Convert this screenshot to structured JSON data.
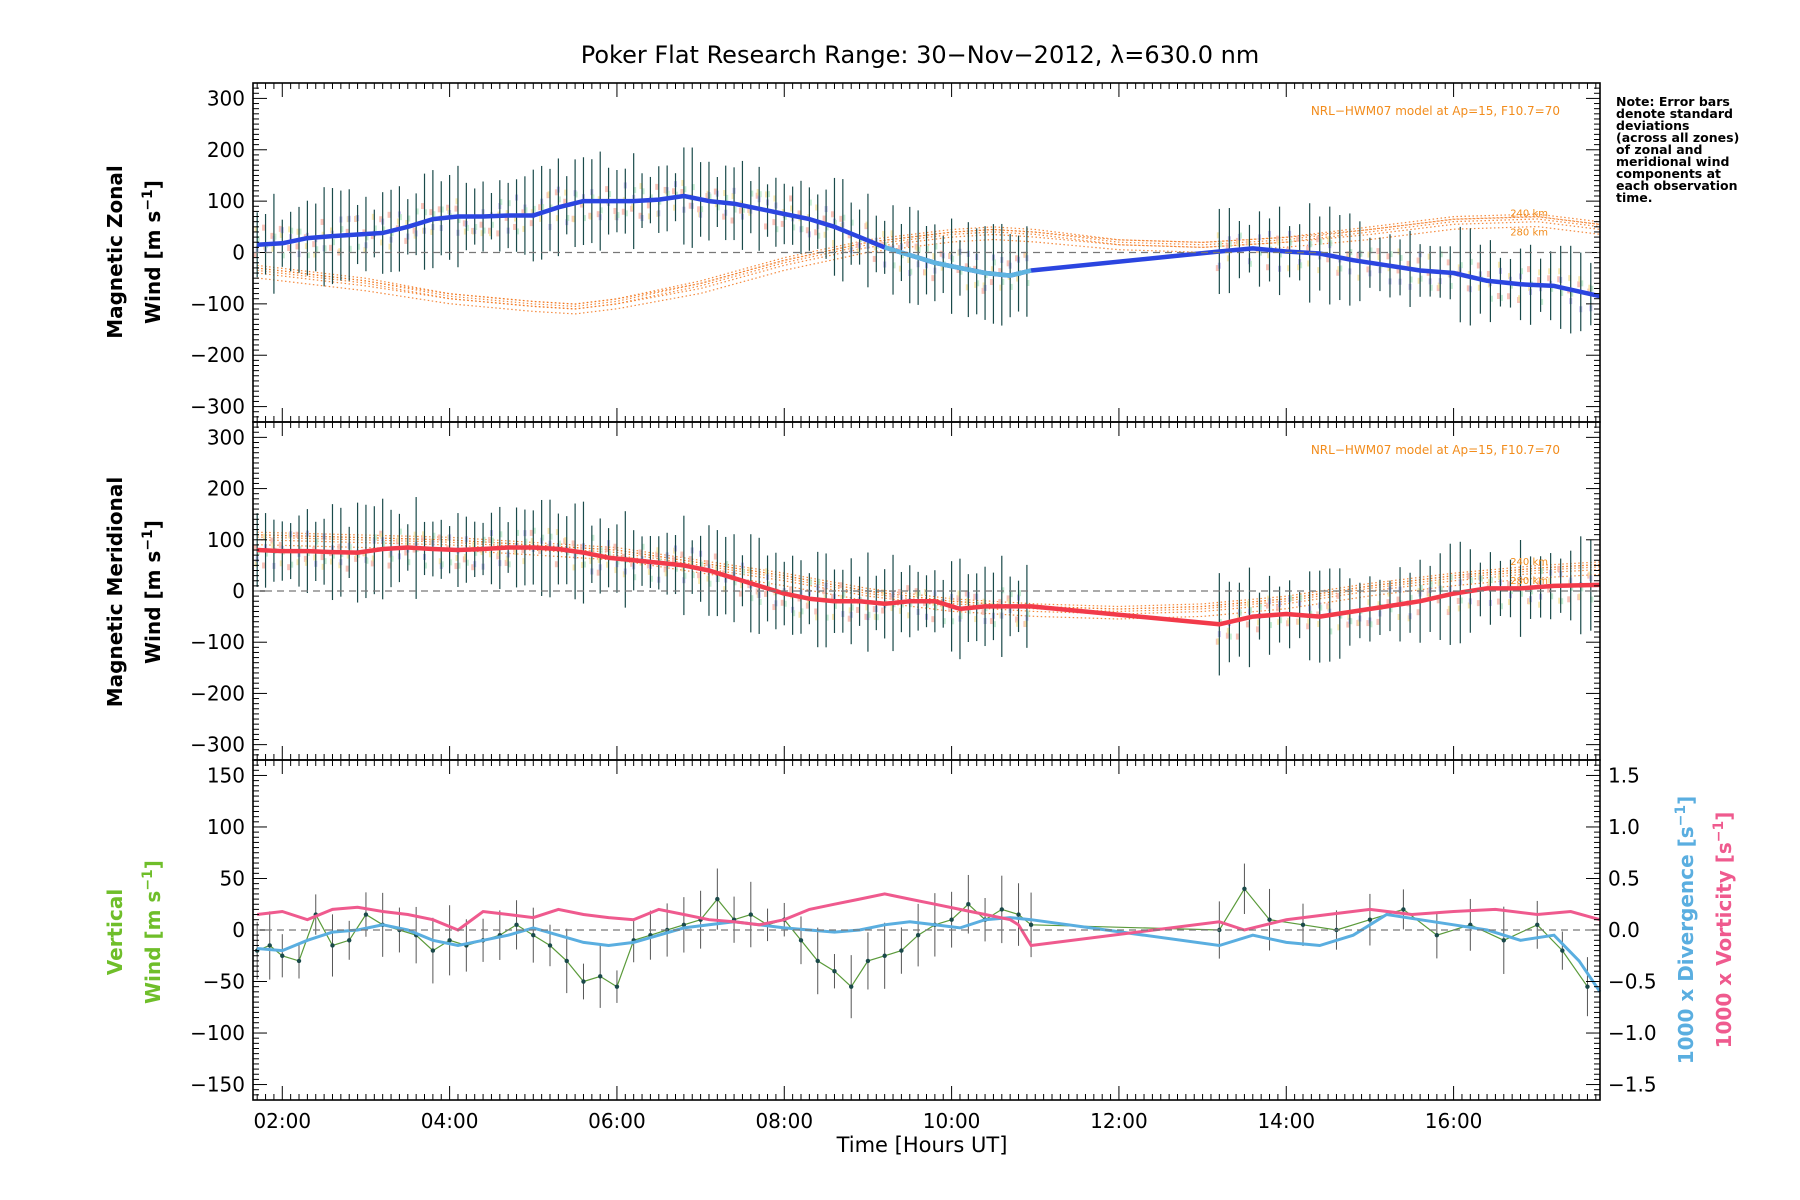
{
  "title": "Poker Flat Research Range: 30−Nov−2012, λ=630.0 nm",
  "note_lines": [
    "Note: Error bars",
    "denote standard",
    "deviations",
    "(across all zones)",
    "of zonal and",
    "meridional wind",
    "components at",
    "each observation",
    "time."
  ],
  "x_axis": {
    "label": "Time [Hours UT]",
    "range_hours": [
      1.65,
      17.75
    ],
    "ticks": [
      {
        "v": 2,
        "label": "02:00"
      },
      {
        "v": 4,
        "label": "04:00"
      },
      {
        "v": 6,
        "label": "06:00"
      },
      {
        "v": 8,
        "label": "08:00"
      },
      {
        "v": 10,
        "label": "10:00"
      },
      {
        "v": 12,
        "label": "12:00"
      },
      {
        "v": 14,
        "label": "14:00"
      },
      {
        "v": 16,
        "label": "16:00"
      }
    ]
  },
  "panels": {
    "zonal": {
      "ylabel_line1": "Magnetic Zonal",
      "ylabel_line2": "Wind [m s",
      "ylabel_sup": "−1",
      "ylabel_close": "]",
      "model_label": "NRL−HWM07 model at Ap=15, F10.7=70",
      "alt_labels": [
        "240 km",
        "280 km"
      ],
      "ylim": [
        -330,
        330
      ],
      "ticks": [
        {
          "v": 300,
          "label": "300"
        },
        {
          "v": 200,
          "label": "200"
        },
        {
          "v": 100,
          "label": "100"
        },
        {
          "v": 0,
          "label": "0"
        },
        {
          "v": -100,
          "label": "−100"
        },
        {
          "v": -200,
          "label": "−200"
        },
        {
          "v": -300,
          "label": "−300"
        }
      ]
    },
    "meridional": {
      "ylabel_line1": "Magnetic Meridional",
      "ylabel_line2": "Wind [m s",
      "ylabel_sup": "−1",
      "ylabel_close": "]",
      "model_label": "NRL−HWM07 model at Ap=15, F10.7=70",
      "alt_labels": [
        "240 km",
        "280 km"
      ],
      "ylim": [
        -330,
        330
      ],
      "ticks": [
        {
          "v": 300,
          "label": "300"
        },
        {
          "v": 200,
          "label": "200"
        },
        {
          "v": 100,
          "label": "100"
        },
        {
          "v": 0,
          "label": "0"
        },
        {
          "v": -100,
          "label": "−100"
        },
        {
          "v": -200,
          "label": "−200"
        },
        {
          "v": -300,
          "label": "−300"
        }
      ]
    },
    "vertical": {
      "ylabel_line1": "Vertical",
      "ylabel_line2": "Wind [m s",
      "ylabel_sup": "−1",
      "ylabel_close": "]",
      "ylim": [
        -165,
        165
      ],
      "ticks": [
        {
          "v": 150,
          "label": "150"
        },
        {
          "v": 100,
          "label": "100"
        },
        {
          "v": 50,
          "label": "50"
        },
        {
          "v": 0,
          "label": "0"
        },
        {
          "v": -50,
          "label": "−50"
        },
        {
          "v": -100,
          "label": "−100"
        },
        {
          "v": -150,
          "label": "−150"
        }
      ],
      "right_ylim": [
        -1.65,
        1.65
      ],
      "right_ticks": [
        {
          "v": 1.5,
          "label": "1.5"
        },
        {
          "v": 1.0,
          "label": "1.0"
        },
        {
          "v": 0.5,
          "label": "0.5"
        },
        {
          "v": 0.0,
          "label": "0.0"
        },
        {
          "v": -0.5,
          "label": "−0.5"
        },
        {
          "v": -1.0,
          "label": "−1.0"
        },
        {
          "v": -1.5,
          "label": "−1.5"
        }
      ],
      "right_label_div": "1000 x Divergence [s",
      "right_label_vor": "1000 x Vorticity [s",
      "right_label_sup": "−1",
      "right_label_close": "]"
    }
  },
  "colors": {
    "zonal_line": "#2b45e0",
    "zonal_light": "#5fb4e0",
    "meridional_line": "#f23a4a",
    "vertical_text": "#6fbe2a",
    "vertical_line": "#5a9a3a",
    "divergence": "#5aaee0",
    "vorticity": "#ef5a8e",
    "model": "#f2761c",
    "errorbar": "#1a4a4a"
  },
  "chart_data": [
    {
      "type": "line",
      "panel": "zonal",
      "series": [
        {
          "x": [
            1.7,
            2.0,
            2.3,
            2.6,
            2.9,
            3.2,
            3.5,
            3.8,
            4.1,
            4.4,
            4.7,
            5.0,
            5.3,
            5.6,
            5.9,
            6.2,
            6.5,
            6.8,
            7.1,
            7.4,
            7.7,
            8.0,
            8.3,
            8.6,
            8.9,
            9.2,
            9.5,
            9.8,
            10.1,
            10.4,
            10.7,
            10.95,
            13.2,
            13.6,
            14.0,
            14.4,
            14.8,
            15.2,
            15.6,
            16.0,
            16.4,
            16.8,
            17.2,
            17.75
          ],
          "values": [
            15,
            18,
            28,
            32,
            35,
            38,
            50,
            65,
            70,
            70,
            72,
            72,
            88,
            100,
            100,
            100,
            103,
            110,
            100,
            95,
            85,
            75,
            65,
            50,
            30,
            10,
            -5,
            -20,
            -30,
            -40,
            -45,
            -35,
            2,
            8,
            2,
            -2,
            -15,
            -25,
            -35,
            -40,
            -55,
            -62,
            -65,
            -85
          ]
        }
      ],
      "model_curves_240km": {
        "x": [
          1.7,
          3,
          4,
          5,
          5.5,
          6,
          7,
          8,
          9,
          10,
          10.5,
          11,
          12,
          13,
          14,
          15,
          16,
          17,
          17.75
        ],
        "values": [
          -30,
          -55,
          -85,
          -100,
          -105,
          -95,
          -60,
          -15,
          20,
          40,
          45,
          40,
          20,
          15,
          25,
          45,
          65,
          70,
          55
        ]
      },
      "model_curves_280km": {
        "x": [
          1.7,
          3,
          4,
          5,
          5.5,
          6,
          7,
          8,
          9,
          10,
          10.5,
          11,
          12,
          13,
          14,
          15,
          16,
          17,
          17.75
        ],
        "values": [
          -40,
          -65,
          -90,
          -105,
          -110,
          -100,
          -70,
          -25,
          10,
          30,
          35,
          30,
          15,
          10,
          20,
          35,
          55,
          60,
          45
        ]
      }
    },
    {
      "type": "line",
      "panel": "meridional",
      "series": [
        {
          "x": [
            1.7,
            2.0,
            2.3,
            2.6,
            2.9,
            3.2,
            3.5,
            3.8,
            4.1,
            4.4,
            4.7,
            5.0,
            5.3,
            5.6,
            5.9,
            6.2,
            6.5,
            6.8,
            7.1,
            7.4,
            7.7,
            8.0,
            8.3,
            8.6,
            8.9,
            9.2,
            9.5,
            9.8,
            10.1,
            10.4,
            10.7,
            10.95,
            13.2,
            13.6,
            14.0,
            14.4,
            14.8,
            15.2,
            15.6,
            16.0,
            16.4,
            16.8,
            17.2,
            17.75
          ],
          "values": [
            80,
            78,
            78,
            76,
            75,
            82,
            85,
            82,
            80,
            82,
            85,
            85,
            82,
            75,
            65,
            60,
            55,
            50,
            40,
            25,
            10,
            -5,
            -15,
            -20,
            -20,
            -25,
            -20,
            -20,
            -35,
            -30,
            -30,
            -30,
            -65,
            -50,
            -45,
            -50,
            -40,
            -30,
            -20,
            -5,
            5,
            5,
            10,
            12
          ]
        }
      ],
      "model_curves_240km": {
        "x": [
          1.7,
          4,
          6,
          8,
          9,
          10,
          11,
          12,
          13,
          14,
          15,
          16,
          17,
          17.75
        ],
        "values": [
          110,
          100,
          80,
          30,
          0,
          -20,
          -30,
          -35,
          -30,
          -15,
          10,
          30,
          45,
          52
        ]
      },
      "model_curves_280km": {
        "x": [
          1.7,
          4,
          6,
          8,
          9,
          10,
          11,
          12,
          13,
          14,
          15,
          16,
          17,
          17.75
        ],
        "values": [
          100,
          90,
          70,
          20,
          -10,
          -30,
          -40,
          -45,
          -40,
          -25,
          0,
          20,
          35,
          42
        ]
      }
    },
    {
      "type": "line",
      "panel": "vertical",
      "series": [
        {
          "name": "Vertical",
          "x": [
            1.7,
            1.85,
            2.0,
            2.2,
            2.4,
            2.6,
            2.8,
            3.0,
            3.2,
            3.4,
            3.6,
            3.8,
            4.0,
            4.2,
            4.4,
            4.6,
            4.8,
            5.0,
            5.2,
            5.4,
            5.6,
            5.8,
            6.0,
            6.2,
            6.4,
            6.6,
            6.8,
            7.0,
            7.2,
            7.4,
            7.6,
            7.8,
            8.0,
            8.2,
            8.4,
            8.6,
            8.8,
            9.0,
            9.2,
            9.4,
            9.6,
            9.8,
            10.0,
            10.2,
            10.4,
            10.6,
            10.8,
            10.95,
            13.2,
            13.5,
            13.8,
            14.2,
            14.6,
            15.0,
            15.4,
            15.8,
            16.2,
            16.6,
            17.0,
            17.3,
            17.6
          ],
          "values": [
            -20,
            -15,
            -25,
            -30,
            15,
            -15,
            -10,
            15,
            5,
            0,
            -5,
            -20,
            -10,
            -15,
            -10,
            -5,
            5,
            -5,
            -15,
            -30,
            -50,
            -45,
            -55,
            -10,
            -5,
            0,
            5,
            10,
            30,
            10,
            15,
            5,
            10,
            -10,
            -30,
            -40,
            -55,
            -30,
            -25,
            -20,
            -5,
            5,
            10,
            25,
            10,
            20,
            15,
            5,
            0,
            40,
            10,
            5,
            0,
            10,
            20,
            -5,
            5,
            -10,
            5,
            -20,
            -55
          ]
        },
        {
          "name": "1000 x Divergence",
          "x": [
            1.7,
            2.0,
            2.3,
            2.6,
            2.9,
            3.2,
            3.5,
            3.8,
            4.1,
            4.4,
            4.7,
            5.0,
            5.3,
            5.6,
            5.9,
            6.2,
            6.5,
            6.8,
            7.1,
            7.4,
            7.7,
            8.0,
            8.3,
            8.6,
            8.9,
            9.2,
            9.5,
            9.8,
            10.1,
            10.4,
            10.7,
            10.95,
            13.2,
            13.6,
            14.0,
            14.4,
            14.8,
            15.2,
            15.6,
            16.0,
            16.4,
            16.8,
            17.2,
            17.5,
            17.75
          ],
          "values": [
            -0.18,
            -0.2,
            -0.1,
            -0.02,
            0.0,
            0.05,
            0.0,
            -0.1,
            -0.15,
            -0.1,
            -0.05,
            0.02,
            -0.05,
            -0.12,
            -0.15,
            -0.12,
            -0.05,
            0.02,
            0.05,
            0.08,
            0.05,
            0.02,
            0.0,
            -0.02,
            0.0,
            0.05,
            0.08,
            0.05,
            0.02,
            0.1,
            0.12,
            0.1,
            -0.15,
            -0.05,
            -0.12,
            -0.15,
            -0.05,
            0.15,
            0.1,
            0.05,
            0.0,
            -0.1,
            -0.05,
            -0.3,
            -0.6
          ]
        },
        {
          "name": "1000 x Vorticity",
          "x": [
            1.7,
            2.0,
            2.3,
            2.6,
            2.9,
            3.2,
            3.5,
            3.8,
            4.1,
            4.4,
            4.7,
            5.0,
            5.3,
            5.6,
            5.9,
            6.2,
            6.5,
            6.8,
            7.1,
            7.4,
            7.7,
            8.0,
            8.3,
            8.6,
            8.9,
            9.2,
            9.5,
            9.8,
            10.1,
            10.4,
            10.7,
            10.8,
            10.95,
            13.2,
            13.5,
            14.0,
            14.5,
            15.0,
            15.5,
            16.0,
            16.5,
            17.0,
            17.4,
            17.75
          ],
          "values": [
            0.15,
            0.18,
            0.1,
            0.2,
            0.22,
            0.18,
            0.15,
            0.1,
            0.0,
            0.18,
            0.15,
            0.12,
            0.2,
            0.15,
            0.12,
            0.1,
            0.2,
            0.15,
            0.1,
            0.08,
            0.05,
            0.1,
            0.2,
            0.25,
            0.3,
            0.35,
            0.3,
            0.25,
            0.2,
            0.15,
            0.1,
            0.05,
            -0.15,
            0.08,
            0.0,
            0.1,
            0.15,
            0.2,
            0.15,
            0.18,
            0.2,
            0.15,
            0.18,
            0.1
          ]
        }
      ]
    }
  ]
}
